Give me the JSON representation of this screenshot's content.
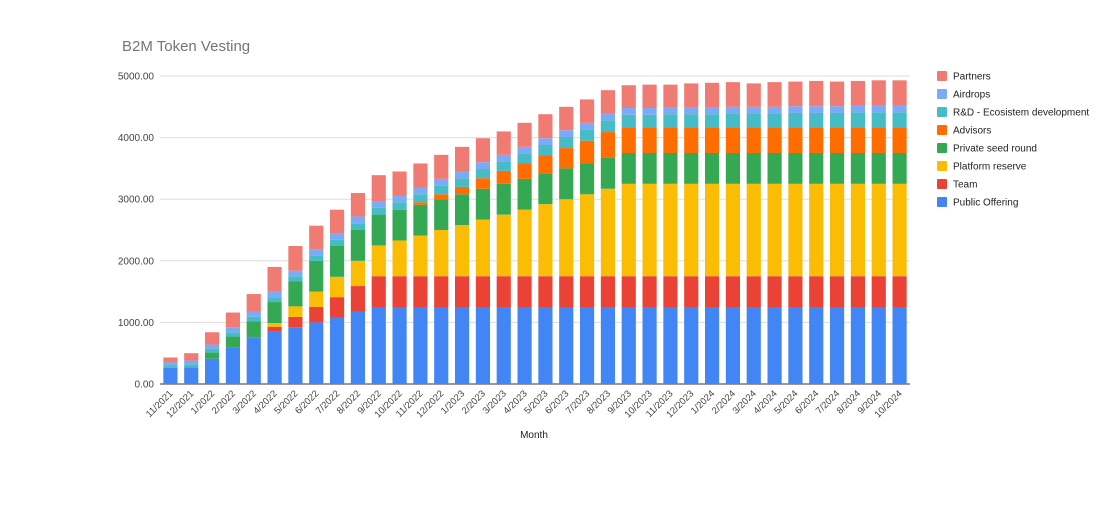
{
  "chart_data": {
    "type": "bar",
    "stacked": true,
    "title": "B2M Token Vesting",
    "xlabel": "Month",
    "ylabel": "",
    "ylim": [
      0,
      5000
    ],
    "yticks": [
      "0.00",
      "1000.00",
      "2000.00",
      "3000.00",
      "4000.00",
      "5000.00"
    ],
    "grid": true,
    "legend_position": "right",
    "categories": [
      "11/2021",
      "12/2021",
      "1/2022",
      "2/2022",
      "3/2022",
      "4/2022",
      "5/2022",
      "6/2022",
      "7/2022",
      "8/2022",
      "9/2022",
      "10/2022",
      "11/2022",
      "12/2022",
      "1/2023",
      "2/2023",
      "3/2023",
      "4/2023",
      "5/2023",
      "6/2023",
      "7/2023",
      "8/2023",
      "9/2023",
      "10/2023",
      "11/2023",
      "12/2023",
      "1/2024",
      "2/2024",
      "3/2024",
      "4/2024",
      "5/2024",
      "6/2024",
      "7/2024",
      "8/2024",
      "9/2024",
      "10/2024"
    ],
    "series": [
      {
        "name": "Public Offering",
        "color": "#4285f4",
        "values": [
          260,
          270,
          410,
          590,
          760,
          850,
          920,
          1000,
          1080,
          1170,
          1250,
          1250,
          1250,
          1250,
          1250,
          1250,
          1250,
          1250,
          1250,
          1250,
          1250,
          1250,
          1250,
          1250,
          1250,
          1250,
          1250,
          1250,
          1250,
          1250,
          1250,
          1250,
          1250,
          1250,
          1250,
          1250
        ]
      },
      {
        "name": "Team",
        "color": "#ea4335",
        "values": [
          0,
          0,
          0,
          0,
          0,
          80,
          170,
          250,
          330,
          420,
          500,
          500,
          500,
          500,
          500,
          500,
          500,
          500,
          500,
          500,
          500,
          500,
          500,
          500,
          500,
          500,
          500,
          500,
          500,
          500,
          500,
          500,
          500,
          500,
          500,
          500
        ]
      },
      {
        "name": "Platform reserve",
        "color": "#fbbc04",
        "values": [
          0,
          0,
          0,
          0,
          0,
          60,
          170,
          250,
          330,
          410,
          500,
          580,
          660,
          750,
          830,
          920,
          1000,
          1080,
          1170,
          1250,
          1330,
          1420,
          1500,
          1500,
          1500,
          1500,
          1500,
          1500,
          1500,
          1500,
          1500,
          1500,
          1500,
          1500,
          1500,
          1500
        ]
      },
      {
        "name": "Private seed round",
        "color": "#34a853",
        "values": [
          0,
          0,
          100,
          180,
          260,
          340,
          410,
          500,
          500,
          500,
          500,
          500,
          500,
          500,
          500,
          500,
          500,
          500,
          500,
          500,
          500,
          500,
          500,
          500,
          500,
          500,
          500,
          500,
          500,
          500,
          500,
          500,
          500,
          500,
          500,
          500
        ]
      },
      {
        "name": "Advisors",
        "color": "#ff6d01",
        "values": [
          0,
          0,
          0,
          0,
          0,
          0,
          0,
          0,
          0,
          0,
          0,
          0,
          40,
          80,
          120,
          170,
          210,
          250,
          290,
          330,
          370,
          420,
          420,
          420,
          420,
          420,
          420,
          420,
          420,
          420,
          420,
          420,
          420,
          420,
          420,
          420
        ]
      },
      {
        "name": "R&D - Ecosistem development",
        "color": "#46bdc6",
        "values": [
          40,
          50,
          60,
          70,
          70,
          80,
          80,
          90,
          100,
          110,
          110,
          120,
          130,
          140,
          140,
          150,
          150,
          160,
          170,
          180,
          180,
          190,
          200,
          200,
          210,
          210,
          210,
          220,
          220,
          220,
          230,
          230,
          230,
          240,
          240,
          240
        ]
      },
      {
        "name": "Airdrops",
        "color": "#7baaf7",
        "values": [
          50,
          60,
          70,
          80,
          80,
          90,
          90,
          100,
          100,
          110,
          110,
          110,
          110,
          110,
          110,
          110,
          110,
          110,
          110,
          110,
          110,
          110,
          110,
          110,
          110,
          110,
          110,
          110,
          110,
          110,
          110,
          110,
          110,
          110,
          110,
          110
        ]
      },
      {
        "name": "Partners",
        "color": "#f07b72",
        "values": [
          80,
          120,
          200,
          240,
          290,
          400,
          400,
          380,
          390,
          380,
          420,
          390,
          390,
          390,
          400,
          390,
          380,
          390,
          390,
          380,
          380,
          380,
          370,
          380,
          370,
          390,
          400,
          400,
          380,
          400,
          400,
          410,
          400,
          400,
          410,
          410
        ]
      }
    ]
  }
}
